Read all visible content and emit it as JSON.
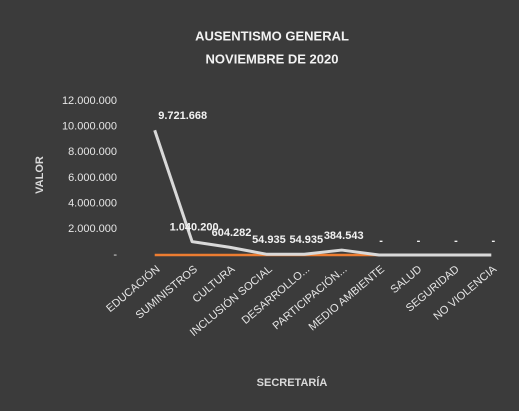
{
  "chart_data": {
    "type": "line",
    "title": "AUSENTISMO GENERAL",
    "subtitle": "NOVIEMBRE DE 2020",
    "y_label": "VALOR",
    "x_label": "SECRETARÍA",
    "categories": [
      "EDUCACIÓN",
      "SUMINISTROS",
      "CULTURA",
      "INCLUSIÓN SOCIAL",
      "DESARROLLO...",
      "PARTICIPACIÓN...",
      "MEDIO AMBIENTE",
      "SALUD",
      "SEGURIDAD",
      "NO VIOLENCIA"
    ],
    "series": [
      {
        "color": "#d9d9d9",
        "values": [
          9721668,
          1040200,
          604282,
          54935,
          54935,
          384543,
          0,
          0,
          0,
          0
        ],
        "value_labels": [
          "9.721.668",
          "1.040.200",
          "604.282",
          "54.935",
          "54.935",
          "384.543",
          "-",
          "-",
          "-",
          "-"
        ]
      },
      {
        "color": "#ed7d31",
        "values": [
          0,
          0,
          0,
          0,
          0,
          0,
          0,
          null,
          null,
          null
        ]
      }
    ],
    "ylim": [
      0,
      12000000
    ],
    "yticks": [
      {
        "value": 0,
        "label": "-"
      },
      {
        "value": 2000000,
        "label": "2.000.000"
      },
      {
        "value": 4000000,
        "label": "4.000.000"
      },
      {
        "value": 6000000,
        "label": "6.000.000"
      },
      {
        "value": 8000000,
        "label": "8.000.000"
      },
      {
        "value": 10000000,
        "label": "10.000.000"
      },
      {
        "value": 12000000,
        "label": "12.000.000"
      }
    ]
  }
}
